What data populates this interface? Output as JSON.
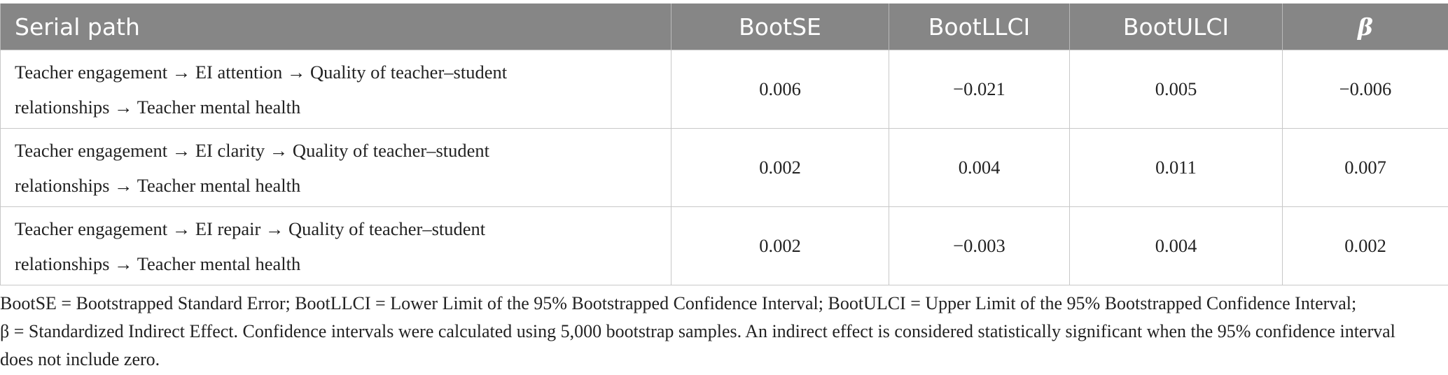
{
  "table": {
    "headers": [
      "Serial path",
      "BootSE",
      "BootLLCI",
      "BootULCI",
      "β"
    ],
    "rows": [
      {
        "path_line1": "Teacher engagement → EI attention → Quality of teacher–student",
        "path_line2": "relationships → Teacher mental health",
        "bootse": "0.006",
        "bootllci": "−0.021",
        "bootulci": "0.005",
        "beta": "−0.006"
      },
      {
        "path_line1": "Teacher engagement → EI clarity → Quality of teacher–student",
        "path_line2": "relationships → Teacher mental health",
        "bootse": "0.002",
        "bootllci": "0.004",
        "bootulci": "0.011",
        "beta": "0.007"
      },
      {
        "path_line1": "Teacher engagement → EI repair → Quality of teacher–student",
        "path_line2": "relationships → Teacher mental health",
        "bootse": "0.002",
        "bootllci": "−0.003",
        "bootulci": "0.004",
        "beta": "0.002"
      }
    ]
  },
  "footnote": {
    "line1": "BootSE = Bootstrapped Standard Error; BootLLCI = Lower Limit of the 95% Bootstrapped Confidence Interval; BootULCI = Upper Limit of the 95% Bootstrapped Confidence Interval;",
    "line2": "β = Standardized Indirect Effect. Confidence intervals were calculated using 5,000 bootstrap samples. An indirect effect is considered statistically significant when the 95% confidence interval",
    "line3": "does not include zero."
  },
  "colors": {
    "header_bg": "#868686",
    "header_text": "#ffffff",
    "grid_line": "#c8c8c8",
    "body_text": "#222222"
  }
}
